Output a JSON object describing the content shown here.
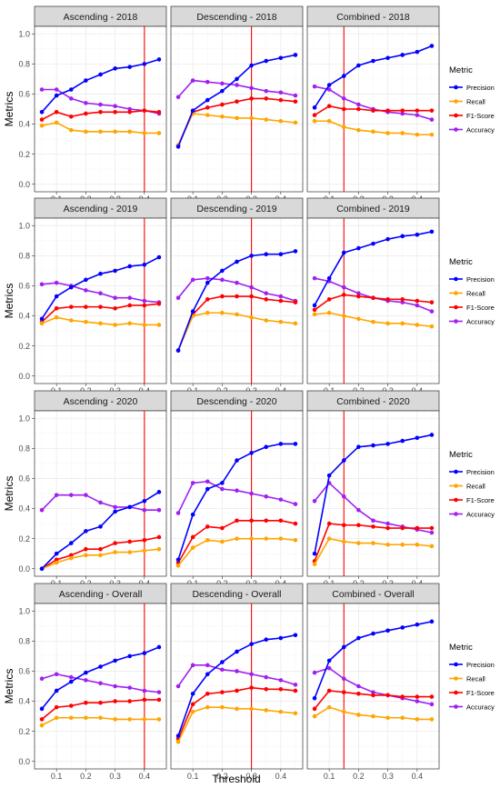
{
  "chart_data": {
    "type": "line",
    "xlabel": "Threshold",
    "ylabel": "Metrics",
    "xlim": [
      0.025,
      0.475
    ],
    "ylim": [
      -0.05,
      1.05
    ],
    "x_ticks": [
      "0.1",
      "0.2",
      "0.3",
      "0.4"
    ],
    "y_ticks": [
      "0.0",
      "0.2",
      "0.4",
      "0.6",
      "0.8",
      "1.0"
    ],
    "x": [
      0.05,
      0.1,
      0.15,
      0.2,
      0.25,
      0.3,
      0.35,
      0.4,
      0.45
    ],
    "threshold_line_color": "#ff0000",
    "legend": {
      "title": "Metric",
      "placement": "right",
      "entries": [
        {
          "name": "Precision",
          "color": "#0000ff"
        },
        {
          "name": "Recall",
          "color": "#ffa500"
        },
        {
          "name": "F1-Score",
          "color": "#ff0000"
        },
        {
          "name": "Accuracy",
          "color": "#a020f0"
        }
      ]
    },
    "panels": [
      {
        "title": "Ascending - 2018",
        "vline": 0.4,
        "series": {
          "Precision": [
            0.48,
            0.59,
            0.63,
            0.69,
            0.73,
            0.77,
            0.78,
            0.8,
            0.83
          ],
          "Recall": [
            0.39,
            0.41,
            0.36,
            0.35,
            0.35,
            0.35,
            0.35,
            0.34,
            0.34
          ],
          "F1-Score": [
            0.43,
            0.48,
            0.45,
            0.47,
            0.48,
            0.48,
            0.48,
            0.49,
            0.48
          ],
          "Accuracy": [
            0.63,
            0.63,
            0.57,
            0.54,
            0.53,
            0.52,
            0.5,
            0.49,
            0.47
          ]
        }
      },
      {
        "title": "Descending - 2018",
        "vline": 0.3,
        "series": {
          "Precision": [
            0.25,
            0.49,
            0.56,
            0.62,
            0.7,
            0.79,
            0.82,
            0.84,
            0.86
          ],
          "Recall": [
            0.26,
            0.47,
            0.46,
            0.45,
            0.44,
            0.44,
            0.43,
            0.42,
            0.41
          ],
          "F1-Score": [
            0.26,
            0.48,
            0.51,
            0.53,
            0.55,
            0.57,
            0.57,
            0.56,
            0.55
          ],
          "Accuracy": [
            0.58,
            0.69,
            0.68,
            0.67,
            0.66,
            0.64,
            0.62,
            0.61,
            0.59
          ]
        }
      },
      {
        "title": "Combined - 2018",
        "vline": 0.15,
        "series": {
          "Precision": [
            0.51,
            0.66,
            0.72,
            0.79,
            0.82,
            0.84,
            0.86,
            0.88,
            0.92
          ],
          "Recall": [
            0.42,
            0.42,
            0.38,
            0.36,
            0.35,
            0.34,
            0.34,
            0.33,
            0.33
          ],
          "F1-Score": [
            0.46,
            0.52,
            0.5,
            0.5,
            0.49,
            0.49,
            0.49,
            0.49,
            0.49
          ],
          "Accuracy": [
            0.65,
            0.63,
            0.57,
            0.53,
            0.5,
            0.48,
            0.47,
            0.46,
            0.43
          ]
        }
      },
      {
        "title": "Ascending - 2019",
        "vline": 0.4,
        "series": {
          "Precision": [
            0.38,
            0.53,
            0.59,
            0.64,
            0.68,
            0.7,
            0.73,
            0.74,
            0.79
          ],
          "Recall": [
            0.35,
            0.39,
            0.37,
            0.36,
            0.35,
            0.34,
            0.35,
            0.34,
            0.34
          ],
          "F1-Score": [
            0.36,
            0.45,
            0.46,
            0.46,
            0.46,
            0.45,
            0.47,
            0.47,
            0.48
          ],
          "Accuracy": [
            0.61,
            0.62,
            0.6,
            0.57,
            0.55,
            0.52,
            0.52,
            0.5,
            0.49
          ]
        }
      },
      {
        "title": "Descending - 2019",
        "vline": 0.3,
        "series": {
          "Precision": [
            0.17,
            0.43,
            0.62,
            0.7,
            0.76,
            0.8,
            0.81,
            0.81,
            0.83
          ],
          "Recall": [
            0.17,
            0.4,
            0.42,
            0.42,
            0.41,
            0.39,
            0.37,
            0.36,
            0.35
          ],
          "F1-Score": [
            0.17,
            0.41,
            0.51,
            0.53,
            0.53,
            0.53,
            0.51,
            0.5,
            0.49
          ],
          "Accuracy": [
            0.52,
            0.64,
            0.65,
            0.64,
            0.62,
            0.59,
            0.55,
            0.53,
            0.5
          ]
        }
      },
      {
        "title": "Combined - 2019",
        "vline": 0.15,
        "series": {
          "Precision": [
            0.47,
            0.65,
            0.82,
            0.85,
            0.88,
            0.91,
            0.93,
            0.94,
            0.96
          ],
          "Recall": [
            0.41,
            0.42,
            0.4,
            0.38,
            0.36,
            0.35,
            0.35,
            0.34,
            0.33
          ],
          "F1-Score": [
            0.44,
            0.51,
            0.54,
            0.53,
            0.52,
            0.51,
            0.51,
            0.5,
            0.49
          ],
          "Accuracy": [
            0.65,
            0.63,
            0.59,
            0.55,
            0.52,
            0.5,
            0.49,
            0.47,
            0.43
          ]
        }
      },
      {
        "title": "Ascending - 2020",
        "vline": 0.4,
        "series": {
          "Precision": [
            0.0,
            0.1,
            0.17,
            0.25,
            0.28,
            0.38,
            0.41,
            0.45,
            0.51
          ],
          "Recall": [
            0.0,
            0.04,
            0.07,
            0.09,
            0.09,
            0.11,
            0.11,
            0.12,
            0.13
          ],
          "F1-Score": [
            0.0,
            0.06,
            0.09,
            0.13,
            0.13,
            0.17,
            0.18,
            0.19,
            0.21
          ],
          "Accuracy": [
            0.39,
            0.49,
            0.49,
            0.49,
            0.44,
            0.41,
            0.41,
            0.39,
            0.39
          ]
        }
      },
      {
        "title": "Descending - 2020",
        "vline": 0.3,
        "series": {
          "Precision": [
            0.06,
            0.36,
            0.53,
            0.57,
            0.72,
            0.77,
            0.81,
            0.83,
            0.83
          ],
          "Recall": [
            0.02,
            0.14,
            0.19,
            0.18,
            0.2,
            0.2,
            0.2,
            0.2,
            0.19
          ],
          "F1-Score": [
            0.04,
            0.21,
            0.28,
            0.27,
            0.32,
            0.32,
            0.32,
            0.32,
            0.3
          ],
          "Accuracy": [
            0.37,
            0.57,
            0.58,
            0.53,
            0.52,
            0.5,
            0.48,
            0.46,
            0.43
          ]
        }
      },
      {
        "title": "Combined - 2020",
        "vline": 0.15,
        "series": {
          "Precision": [
            0.1,
            0.62,
            0.72,
            0.81,
            0.82,
            0.83,
            0.85,
            0.87,
            0.89
          ],
          "Recall": [
            0.03,
            0.2,
            0.18,
            0.17,
            0.17,
            0.16,
            0.16,
            0.16,
            0.15
          ],
          "F1-Score": [
            0.05,
            0.3,
            0.29,
            0.29,
            0.28,
            0.27,
            0.27,
            0.27,
            0.27
          ],
          "Accuracy": [
            0.45,
            0.57,
            0.48,
            0.39,
            0.32,
            0.3,
            0.28,
            0.26,
            0.24
          ]
        }
      },
      {
        "title": "Ascending - Overall",
        "vline": 0.4,
        "series": {
          "Precision": [
            0.35,
            0.47,
            0.53,
            0.59,
            0.63,
            0.67,
            0.7,
            0.72,
            0.76
          ],
          "Recall": [
            0.24,
            0.29,
            0.29,
            0.29,
            0.29,
            0.28,
            0.28,
            0.28,
            0.28
          ],
          "F1-Score": [
            0.28,
            0.36,
            0.37,
            0.39,
            0.39,
            0.4,
            0.4,
            0.41,
            0.41
          ],
          "Accuracy": [
            0.55,
            0.58,
            0.56,
            0.54,
            0.52,
            0.5,
            0.49,
            0.47,
            0.46
          ]
        }
      },
      {
        "title": "Descending - Overall",
        "vline": 0.3,
        "series": {
          "Precision": [
            0.17,
            0.45,
            0.58,
            0.66,
            0.73,
            0.78,
            0.81,
            0.82,
            0.84
          ],
          "Recall": [
            0.13,
            0.33,
            0.36,
            0.36,
            0.35,
            0.35,
            0.34,
            0.33,
            0.32
          ],
          "F1-Score": [
            0.15,
            0.38,
            0.45,
            0.46,
            0.47,
            0.49,
            0.48,
            0.48,
            0.47
          ],
          "Accuracy": [
            0.5,
            0.64,
            0.64,
            0.61,
            0.6,
            0.58,
            0.56,
            0.54,
            0.51
          ]
        }
      },
      {
        "title": "Combined - Overall",
        "vline": 0.15,
        "series": {
          "Precision": [
            0.42,
            0.67,
            0.76,
            0.82,
            0.85,
            0.87,
            0.89,
            0.91,
            0.93
          ],
          "Recall": [
            0.3,
            0.36,
            0.33,
            0.31,
            0.3,
            0.29,
            0.29,
            0.28,
            0.28
          ],
          "F1-Score": [
            0.35,
            0.47,
            0.46,
            0.45,
            0.44,
            0.44,
            0.43,
            0.43,
            0.43
          ],
          "Accuracy": [
            0.59,
            0.62,
            0.55,
            0.5,
            0.46,
            0.44,
            0.42,
            0.4,
            0.38
          ]
        }
      }
    ]
  }
}
